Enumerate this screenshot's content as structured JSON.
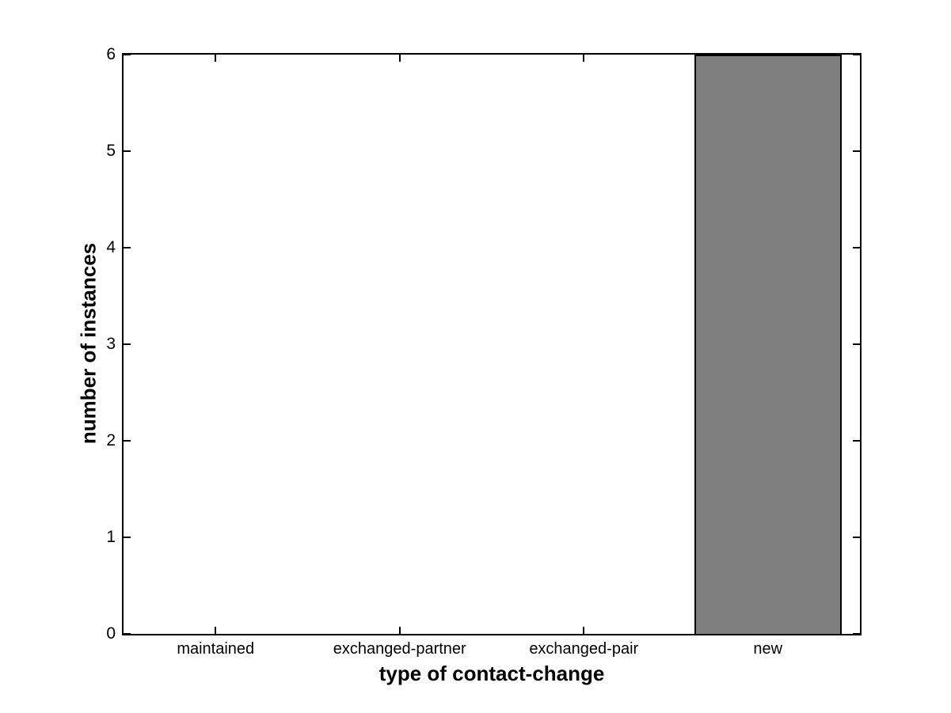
{
  "chart_data": {
    "type": "bar",
    "title": "",
    "xlabel": "type of contact-change",
    "ylabel": "number of instances",
    "categories": [
      "maintained",
      "exchanged-partner",
      "exchanged-pair",
      "new"
    ],
    "values": [
      0,
      0,
      0,
      6
    ],
    "ylim": [
      0,
      6
    ],
    "yticks": [
      "0",
      "1",
      "2",
      "3",
      "4",
      "5",
      "6"
    ],
    "bar_width_fraction": 0.8,
    "grid": false,
    "legend_position": "none",
    "colors": {
      "bar_fill": "#7f7f7f",
      "bar_edge": "#000000",
      "axis": "#000000",
      "text": "#000000",
      "background": "#ffffff"
    }
  }
}
